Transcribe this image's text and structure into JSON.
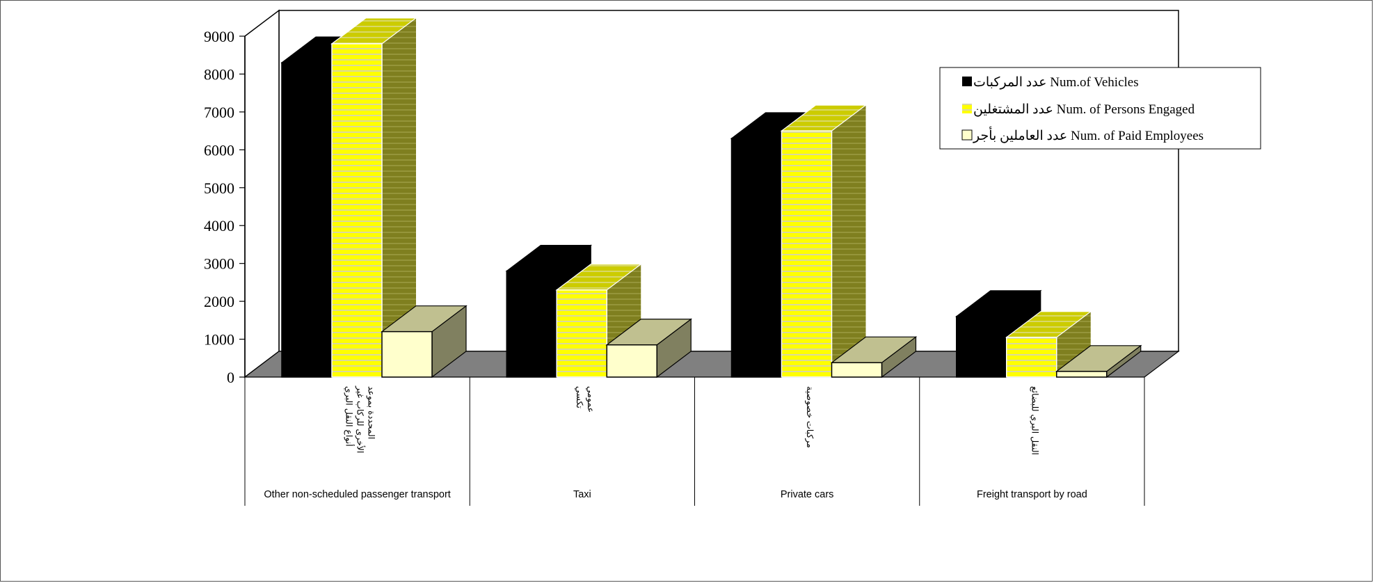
{
  "chart_data": {
    "type": "bar",
    "categories": [
      "Other non-scheduled passenger transport",
      "Taxi",
      "Private cars",
      "Freight transport by road"
    ],
    "categories_ar": [
      [
        "أنواع النقل البري",
        "الأخرى للركاب غير",
        "المحددة بموعد"
      ],
      [
        "تكسي",
        "عمومي"
      ],
      [
        "مركبات خصوصية"
      ],
      [
        "النقل البري للبضائع"
      ]
    ],
    "series": [
      {
        "name": "عدد  المركبات Num.of Vehicles",
        "values": [
          8300,
          2800,
          6300,
          1600
        ]
      },
      {
        "name": "عدد المشتغلين Num. of Persons  Engaged",
        "values": [
          8800,
          2300,
          6500,
          1050
        ]
      },
      {
        "name": "عدد العاملين بأجر Num. of Paid Employees",
        "values": [
          1200,
          850,
          380,
          150
        ]
      }
    ],
    "yticks": [
      "0",
      "1000",
      "2000",
      "3000",
      "4000",
      "5000",
      "6000",
      "7000",
      "8000",
      "9000"
    ],
    "ylim": [
      0,
      9000
    ],
    "legend_position": "top-right",
    "colors": {
      "vehicles": "#000000",
      "persons": "#ffff00",
      "persons_stripe": "#d8d8a0",
      "persons_side": "#7a7a1a",
      "persons_top": "#c8c800",
      "paid": "#ffffcc",
      "paid_side": "#808060",
      "paid_top": "#c0c090",
      "floor": "#808080"
    }
  }
}
